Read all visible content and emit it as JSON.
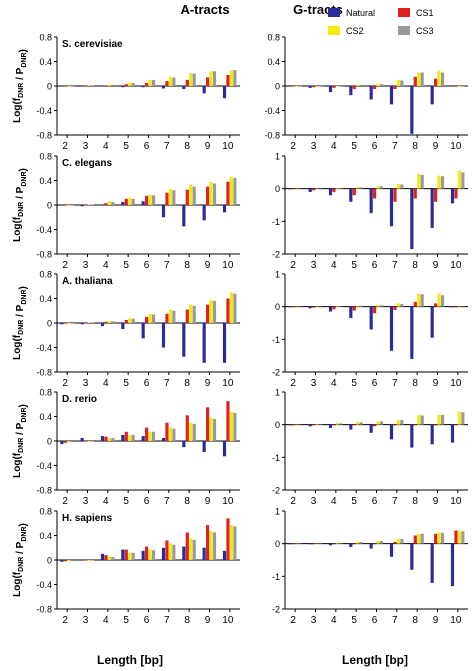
{
  "figure": {
    "column_titles": [
      "A-tracts",
      "G-tracts"
    ],
    "ylabel": "Log(f_DNR / P_DNR)",
    "xlabel": "Length [bp]",
    "legend": [
      {
        "name": "Natural",
        "color": "#2a2a9a"
      },
      {
        "name": "CS1",
        "color": "#e02020"
      },
      {
        "name": "CS2",
        "color": "#f5ea10"
      },
      {
        "name": "CS3",
        "color": "#9a9a9a"
      }
    ]
  },
  "chart_data": [
    {
      "type": "bar",
      "column": "A-tracts",
      "organism": "S. cerevisiae",
      "categories": [
        "2",
        "3",
        "4",
        "5",
        "6",
        "7",
        "8",
        "9",
        "10"
      ],
      "ylim": [
        -0.8,
        0.8
      ],
      "yticks": [
        -0.8,
        -0.4,
        0,
        0.4,
        0.8
      ],
      "series": [
        {
          "name": "Natural",
          "values": [
            -0.01,
            -0.01,
            0.0,
            -0.02,
            -0.02,
            -0.04,
            -0.05,
            -0.12,
            -0.2
          ]
        },
        {
          "name": "CS1",
          "values": [
            -0.01,
            0.0,
            0.01,
            0.03,
            0.05,
            0.08,
            0.1,
            0.14,
            0.18
          ]
        },
        {
          "name": "CS2",
          "values": [
            0.0,
            0.01,
            0.02,
            0.06,
            0.1,
            0.15,
            0.21,
            0.24,
            0.26
          ]
        },
        {
          "name": "CS3",
          "values": [
            0.0,
            0.01,
            0.02,
            0.05,
            0.1,
            0.14,
            0.2,
            0.24,
            0.26
          ]
        }
      ]
    },
    {
      "type": "bar",
      "column": "G-tracts",
      "organism": "S. cerevisiae",
      "categories": [
        "2",
        "3",
        "4",
        "5",
        "6",
        "7",
        "8",
        "9",
        "10"
      ],
      "ylim": [
        -0.8,
        0.8
      ],
      "yticks": [
        -0.8,
        -0.4,
        0,
        0.4,
        0.8
      ],
      "series": [
        {
          "name": "Natural",
          "values": [
            0.0,
            -0.03,
            -0.1,
            -0.15,
            -0.22,
            -0.3,
            -0.78,
            -0.3,
            0.0
          ]
        },
        {
          "name": "CS1",
          "values": [
            0.0,
            -0.02,
            -0.03,
            -0.05,
            -0.05,
            -0.05,
            0.15,
            0.12,
            0.0
          ]
        },
        {
          "name": "CS2",
          "values": [
            0.0,
            0.0,
            0.0,
            0.02,
            0.04,
            0.1,
            0.22,
            0.25,
            0.0
          ]
        },
        {
          "name": "CS3",
          "values": [
            0.0,
            0.0,
            0.0,
            0.02,
            0.03,
            0.09,
            0.22,
            0.22,
            0.0
          ]
        }
      ]
    },
    {
      "type": "bar",
      "column": "A-tracts",
      "organism": "C. elegans",
      "categories": [
        "2",
        "3",
        "4",
        "5",
        "6",
        "7",
        "8",
        "9",
        "10"
      ],
      "ylim": [
        -0.8,
        0.8
      ],
      "yticks": [
        -0.8,
        -0.4,
        0,
        0.4,
        0.8
      ],
      "series": [
        {
          "name": "Natural",
          "values": [
            0.0,
            -0.02,
            0.01,
            0.05,
            0.06,
            -0.2,
            -0.35,
            -0.25,
            -0.12
          ]
        },
        {
          "name": "CS1",
          "values": [
            0.0,
            0.0,
            0.03,
            0.1,
            0.15,
            0.2,
            0.25,
            0.3,
            0.38
          ]
        },
        {
          "name": "CS2",
          "values": [
            0.0,
            0.01,
            0.06,
            0.12,
            0.17,
            0.26,
            0.33,
            0.38,
            0.46
          ]
        },
        {
          "name": "CS3",
          "values": [
            0.0,
            0.01,
            0.05,
            0.1,
            0.16,
            0.24,
            0.3,
            0.35,
            0.44
          ]
        }
      ]
    },
    {
      "type": "bar",
      "column": "G-tracts",
      "organism": "C. elegans",
      "categories": [
        "2",
        "3",
        "4",
        "5",
        "6",
        "7",
        "8",
        "9",
        "10"
      ],
      "ylim": [
        -2,
        1
      ],
      "yticks": [
        -2,
        -1,
        0,
        1
      ],
      "series": [
        {
          "name": "Natural",
          "values": [
            0.0,
            -0.1,
            -0.2,
            -0.4,
            -0.75,
            -1.15,
            -1.85,
            -1.2,
            -0.45
          ]
        },
        {
          "name": "CS1",
          "values": [
            0.0,
            -0.05,
            -0.1,
            -0.2,
            -0.3,
            -0.4,
            -0.3,
            -0.4,
            -0.3
          ]
        },
        {
          "name": "CS2",
          "values": [
            0.0,
            0.0,
            0.02,
            0.05,
            0.08,
            0.15,
            0.45,
            0.4,
            0.55
          ]
        },
        {
          "name": "CS3",
          "values": [
            0.0,
            0.0,
            0.02,
            0.04,
            0.07,
            0.13,
            0.42,
            0.38,
            0.5
          ]
        }
      ]
    },
    {
      "type": "bar",
      "column": "A-tracts",
      "organism": "A. thaliana",
      "categories": [
        "2",
        "3",
        "4",
        "5",
        "6",
        "7",
        "8",
        "9",
        "10"
      ],
      "ylim": [
        -0.8,
        0.8
      ],
      "yticks": [
        -0.8,
        -0.4,
        0,
        0.4,
        0.8
      ],
      "series": [
        {
          "name": "Natural",
          "values": [
            -0.02,
            -0.02,
            -0.05,
            -0.1,
            -0.25,
            -0.4,
            -0.55,
            -0.65,
            -0.65
          ]
        },
        {
          "name": "CS1",
          "values": [
            0.0,
            0.0,
            0.02,
            0.05,
            0.1,
            0.15,
            0.22,
            0.3,
            0.4
          ]
        },
        {
          "name": "CS2",
          "values": [
            0.0,
            0.01,
            0.03,
            0.08,
            0.15,
            0.22,
            0.3,
            0.38,
            0.5
          ]
        },
        {
          "name": "CS3",
          "values": [
            0.0,
            0.01,
            0.03,
            0.07,
            0.14,
            0.2,
            0.28,
            0.36,
            0.48
          ]
        }
      ]
    },
    {
      "type": "bar",
      "column": "G-tracts",
      "organism": "A. thaliana",
      "categories": [
        "2",
        "3",
        "4",
        "5",
        "6",
        "7",
        "8",
        "9",
        "10"
      ],
      "ylim": [
        -2,
        1
      ],
      "yticks": [
        -2,
        -1,
        0,
        1
      ],
      "series": [
        {
          "name": "Natural",
          "values": [
            0.0,
            -0.05,
            -0.15,
            -0.35,
            -0.7,
            -1.35,
            -1.6,
            -0.95,
            0.0
          ]
        },
        {
          "name": "CS1",
          "values": [
            0.0,
            -0.03,
            -0.08,
            -0.12,
            -0.2,
            -0.1,
            0.15,
            0.1,
            0.0
          ]
        },
        {
          "name": "CS2",
          "values": [
            0.0,
            0.0,
            0.02,
            0.03,
            0.05,
            0.1,
            0.4,
            0.4,
            0.0
          ]
        },
        {
          "name": "CS3",
          "values": [
            0.0,
            0.0,
            0.02,
            0.03,
            0.04,
            0.08,
            0.38,
            0.35,
            0.0
          ]
        }
      ]
    },
    {
      "type": "bar",
      "column": "A-tracts",
      "organism": "D. rerio",
      "categories": [
        "2",
        "3",
        "4",
        "5",
        "6",
        "7",
        "8",
        "9",
        "10"
      ],
      "ylim": [
        -0.8,
        0.8
      ],
      "yticks": [
        -0.8,
        -0.4,
        0,
        0.4,
        0.8
      ],
      "series": [
        {
          "name": "Natural",
          "values": [
            -0.05,
            0.05,
            0.08,
            0.1,
            0.08,
            0.05,
            -0.1,
            -0.18,
            -0.25
          ]
        },
        {
          "name": "CS1",
          "values": [
            -0.03,
            0.0,
            0.07,
            0.15,
            0.22,
            0.3,
            0.42,
            0.55,
            0.65
          ]
        },
        {
          "name": "CS2",
          "values": [
            -0.02,
            0.0,
            0.05,
            0.1,
            0.15,
            0.22,
            0.3,
            0.38,
            0.48
          ]
        },
        {
          "name": "CS3",
          "values": [
            -0.02,
            0.0,
            0.05,
            0.1,
            0.15,
            0.2,
            0.28,
            0.36,
            0.46
          ]
        }
      ]
    },
    {
      "type": "bar",
      "column": "G-tracts",
      "organism": "D. rerio",
      "categories": [
        "2",
        "3",
        "4",
        "5",
        "6",
        "7",
        "8",
        "9",
        "10"
      ],
      "ylim": [
        -2,
        1
      ],
      "yticks": [
        -2,
        -1,
        0,
        1
      ],
      "series": [
        {
          "name": "Natural",
          "values": [
            0.0,
            -0.05,
            -0.1,
            -0.15,
            -0.25,
            -0.45,
            -0.7,
            -0.6,
            -0.55
          ]
        },
        {
          "name": "CS1",
          "values": [
            0.0,
            0.0,
            0.0,
            0.0,
            -0.05,
            0.0,
            0.0,
            0.0,
            0.0
          ]
        },
        {
          "name": "CS2",
          "values": [
            0.0,
            0.02,
            0.05,
            0.08,
            0.1,
            0.15,
            0.3,
            0.3,
            0.4
          ]
        },
        {
          "name": "CS3",
          "values": [
            0.0,
            0.02,
            0.04,
            0.07,
            0.1,
            0.14,
            0.28,
            0.3,
            0.38
          ]
        }
      ]
    },
    {
      "type": "bar",
      "column": "A-tracts",
      "organism": "H. sapiens",
      "categories": [
        "2",
        "3",
        "4",
        "5",
        "6",
        "7",
        "8",
        "9",
        "10"
      ],
      "ylim": [
        -0.8,
        0.8
      ],
      "yticks": [
        -0.8,
        -0.4,
        0,
        0.4,
        0.8
      ],
      "series": [
        {
          "name": "Natural",
          "values": [
            -0.03,
            0.0,
            0.1,
            0.17,
            0.15,
            0.2,
            0.22,
            0.2,
            0.15
          ]
        },
        {
          "name": "CS1",
          "values": [
            -0.02,
            0.0,
            0.08,
            0.17,
            0.22,
            0.32,
            0.45,
            0.57,
            0.68
          ]
        },
        {
          "name": "CS2",
          "values": [
            -0.02,
            0.0,
            0.06,
            0.12,
            0.17,
            0.27,
            0.35,
            0.47,
            0.57
          ]
        },
        {
          "name": "CS3",
          "values": [
            -0.02,
            0.0,
            0.05,
            0.12,
            0.16,
            0.25,
            0.33,
            0.45,
            0.55
          ]
        }
      ]
    },
    {
      "type": "bar",
      "column": "G-tracts",
      "organism": "H. sapiens",
      "categories": [
        "2",
        "3",
        "4",
        "5",
        "6",
        "7",
        "8",
        "9",
        "10"
      ],
      "ylim": [
        -2,
        1
      ],
      "yticks": [
        -2,
        -1,
        0,
        1
      ],
      "series": [
        {
          "name": "Natural",
          "values": [
            0.0,
            -0.02,
            -0.05,
            -0.1,
            -0.15,
            -0.4,
            -0.8,
            -1.2,
            -1.3
          ]
        },
        {
          "name": "CS1",
          "values": [
            0.0,
            0.0,
            0.0,
            0.0,
            0.0,
            0.05,
            0.25,
            0.3,
            0.4
          ]
        },
        {
          "name": "CS2",
          "values": [
            0.0,
            0.0,
            0.02,
            0.05,
            0.08,
            0.15,
            0.3,
            0.35,
            0.4
          ]
        },
        {
          "name": "CS3",
          "values": [
            0.0,
            0.0,
            0.02,
            0.05,
            0.08,
            0.14,
            0.3,
            0.33,
            0.38
          ]
        }
      ]
    }
  ]
}
